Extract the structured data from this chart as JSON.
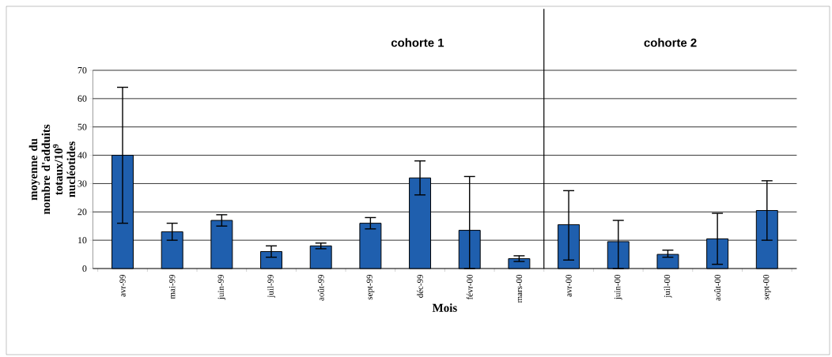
{
  "chart_data": {
    "type": "bar",
    "xlabel": "Mois",
    "ylabel": "moyenne du nombre d'adduits totaux/10$^{9}$ nucléotides",
    "categories": [
      "avr-99",
      "mai-99",
      "juin-99",
      "juil-99",
      "août-99",
      "sept-99",
      "déc-99",
      "févr-00",
      "mars-00",
      "avr-00",
      "juin-00",
      "juil-00",
      "août-00",
      "sept-00"
    ],
    "values": [
      40,
      13,
      17,
      6,
      8,
      16,
      32,
      13.5,
      3.5,
      15.5,
      9.5,
      5,
      10.5,
      20.5
    ],
    "errors": [
      [
        16,
        64
      ],
      [
        10,
        16
      ],
      [
        15,
        19
      ],
      [
        4,
        8
      ],
      [
        7,
        9
      ],
      [
        14,
        18
      ],
      [
        26,
        38
      ],
      [
        0,
        32.5
      ],
      [
        2.5,
        4.5
      ],
      [
        3,
        27.5
      ],
      [
        0,
        17
      ],
      [
        4,
        6.5
      ],
      [
        1.5,
        19.5
      ],
      [
        10,
        31
      ]
    ],
    "color": "#1f5fae",
    "ylim": [
      0,
      70
    ],
    "yticks": [
      0,
      10,
      20,
      30,
      40,
      50,
      60,
      70
    ],
    "grid": "y",
    "annotations": [
      "cohorte 1",
      "cohorte 2"
    ]
  }
}
